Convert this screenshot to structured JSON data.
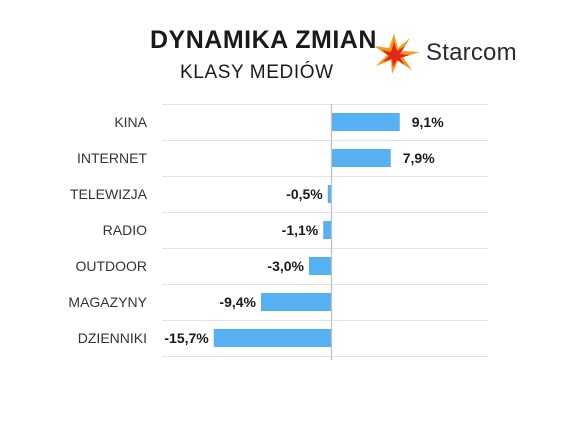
{
  "header": {
    "title": "DYNAMIKA ZMIAN",
    "subtitle": "KLASY MEDIÓW",
    "brand": "Starcom"
  },
  "colors": {
    "bar": "#56b1f3",
    "grid": "#e3e3e3",
    "axis": "#bfbfbf",
    "logo_orange": "#f39a1e",
    "logo_red": "#e2261b"
  },
  "chart_data": {
    "type": "bar",
    "orientation": "horizontal",
    "categories": [
      "KINA",
      "INTERNET",
      "TELEWIZJA",
      "RADIO",
      "OUTDOOR",
      "MAGAZYNY",
      "DZIENNIKI"
    ],
    "values": [
      9.1,
      7.9,
      -0.5,
      -1.1,
      -3.0,
      -9.4,
      -15.7
    ],
    "value_labels": [
      "9,1%",
      "7,9%",
      "-0,5%",
      "-1,1%",
      "-3,0%",
      "-9,4%",
      "-15,7%"
    ],
    "xlim": [
      -18,
      12
    ],
    "grid": true,
    "legend": "none"
  }
}
